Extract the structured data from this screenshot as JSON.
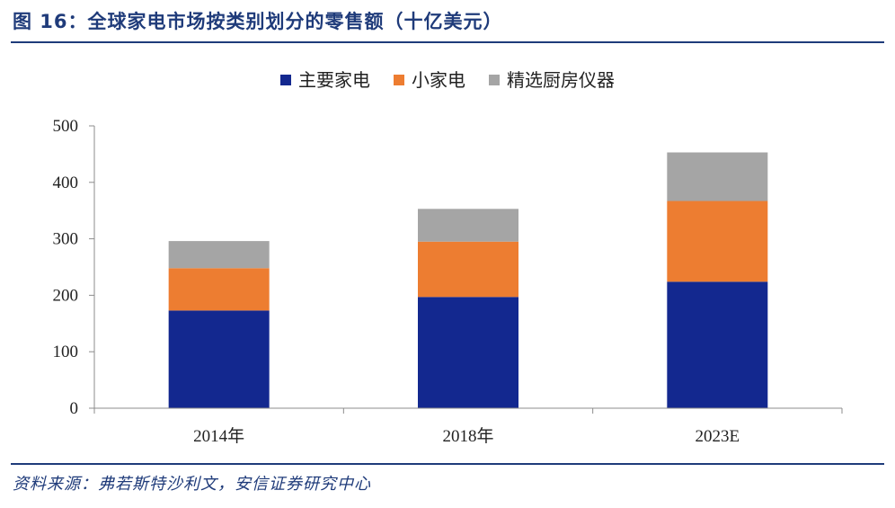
{
  "header": {
    "title": "图 16：全球家电市场按类别划分的零售额（十亿美元）"
  },
  "footer": {
    "source": "资料来源：弗若斯特沙利文，安信证券研究中心"
  },
  "chart_data": {
    "type": "bar",
    "stacked": true,
    "categories": [
      "2014年",
      "2018年",
      "2023E"
    ],
    "series": [
      {
        "name": "主要家电",
        "values": [
          173,
          197,
          224
        ],
        "color": "#13288f"
      },
      {
        "name": "小家电",
        "values": [
          75,
          98,
          143
        ],
        "color": "#ed7d31"
      },
      {
        "name": "精选厨房仪器",
        "values": [
          48,
          58,
          86
        ],
        "color": "#a5a5a5"
      }
    ],
    "ylim": [
      0,
      500
    ],
    "yticks": [
      "0",
      "100",
      "200",
      "300",
      "400",
      "500"
    ],
    "grid": false,
    "legend_position": "top-center"
  }
}
